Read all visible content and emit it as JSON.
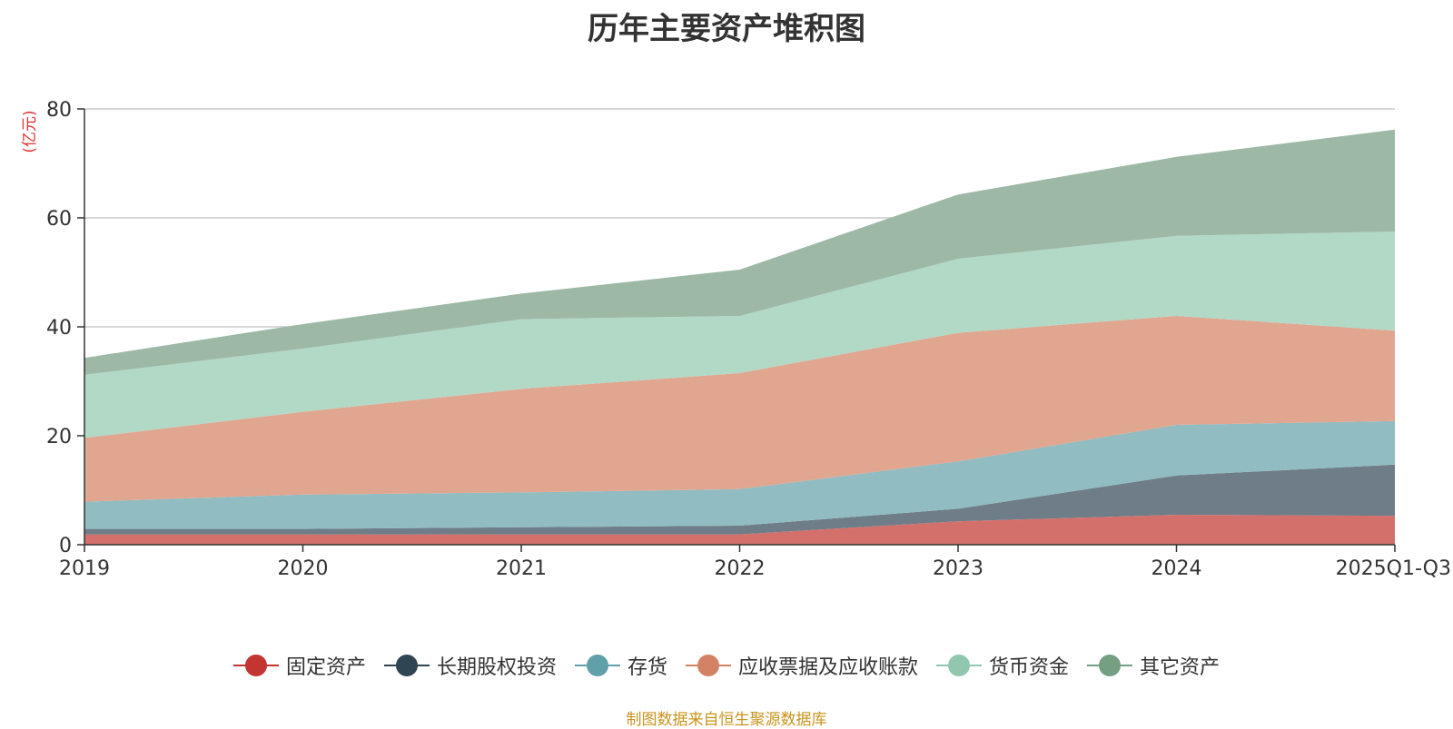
{
  "chart_data": {
    "type": "area",
    "stacked": true,
    "title": "历年主要资产堆积图",
    "ylabel": "(亿元)",
    "xlabel": "",
    "ylim": [
      0,
      80
    ],
    "yticks": [
      0,
      20,
      40,
      60,
      80
    ],
    "categories": [
      "2019",
      "2020",
      "2021",
      "2022",
      "2023",
      "2024",
      "2025Q1-Q3"
    ],
    "series": [
      {
        "name": "固定资产",
        "values": [
          1.9,
          1.9,
          1.9,
          1.9,
          4.3,
          5.5,
          5.3
        ],
        "color": "#c23531",
        "fill": "#d4706c"
      },
      {
        "name": "长期股权投资",
        "values": [
          1.0,
          1.0,
          1.3,
          1.6,
          2.3,
          7.2,
          9.4
        ],
        "color": "#2f4554",
        "fill": "#6e7d87"
      },
      {
        "name": "存货",
        "values": [
          5.0,
          6.3,
          6.4,
          6.7,
          8.7,
          9.3,
          8.0
        ],
        "color": "#61a0a8",
        "fill": "#90bcc2"
      },
      {
        "name": "应收票据及应收账款",
        "values": [
          11.7,
          15.2,
          19.0,
          21.3,
          23.6,
          20.0,
          16.6
        ],
        "color": "#d48265",
        "fill": "#e0a690"
      },
      {
        "name": "货币资金",
        "values": [
          11.6,
          11.6,
          12.8,
          10.5,
          13.6,
          14.7,
          18.2
        ],
        "color": "#91c7ae",
        "fill": "#b2d8c6"
      },
      {
        "name": "其它资产",
        "values": [
          3.1,
          4.5,
          4.7,
          8.5,
          11.8,
          14.5,
          18.7
        ],
        "color": "#749f83",
        "fill": "#9db9a6"
      }
    ],
    "legend_position": "bottom-center",
    "grid": true
  },
  "source_note": "制图数据来自恒生聚源数据库"
}
